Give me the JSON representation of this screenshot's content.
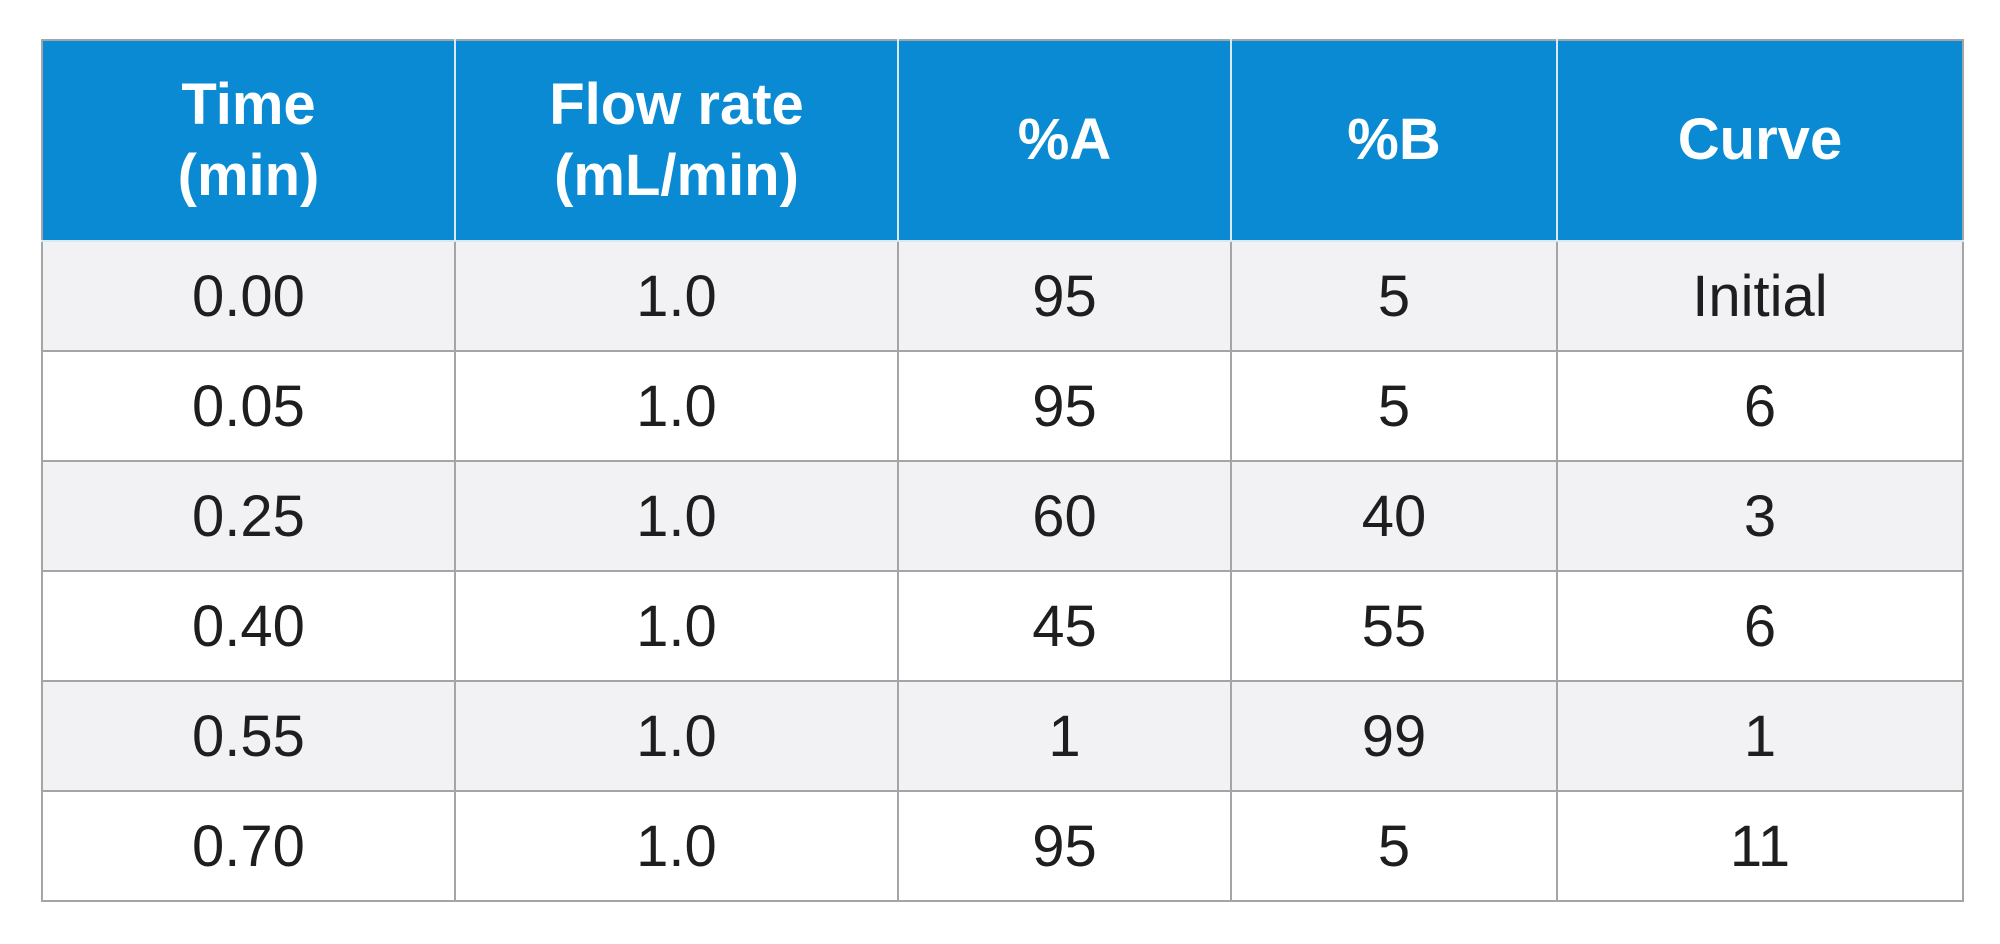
{
  "table": {
    "headers": [
      [
        "Time",
        "(min)"
      ],
      [
        "Flow rate",
        "(mL/min)"
      ],
      [
        "%A"
      ],
      [
        "%B"
      ],
      [
        "Curve"
      ]
    ],
    "rows": [
      [
        "0.00",
        "1.0",
        "95",
        "5",
        "Initial"
      ],
      [
        "0.05",
        "1.0",
        "95",
        "5",
        "6"
      ],
      [
        "0.25",
        "1.0",
        "60",
        "40",
        "3"
      ],
      [
        "0.40",
        "1.0",
        "45",
        "55",
        "6"
      ],
      [
        "0.55",
        "1.0",
        "1",
        "99",
        "1"
      ],
      [
        "0.70",
        "1.0",
        "95",
        "5",
        "11"
      ]
    ],
    "colors": {
      "header_bg": "#0a8ad2",
      "header_text": "#ffffff",
      "row_alt_bg": "#f2f2f4",
      "row_bg": "#ffffff",
      "border": "#a3a5a7",
      "cell_text": "#1e1e1e"
    }
  }
}
